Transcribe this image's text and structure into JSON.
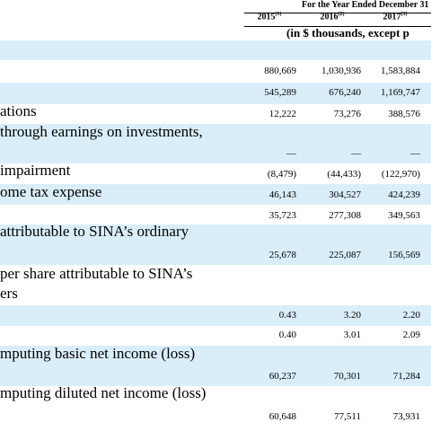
{
  "header": {
    "period": "For the Year Ended December 31",
    "years": [
      {
        "year": "2015",
        "note": "(1)"
      },
      {
        "year": "2016",
        "note": "(2)"
      },
      {
        "year": "2017",
        "note": "(3)"
      }
    ],
    "unit_note": "(in $ thousands, except p"
  },
  "table": {
    "rows": [
      {},
      {
        "values": [
          "880,669",
          "1,030,936",
          "1,583,884"
        ]
      },
      {
        "values": [
          "545,289",
          "676,240",
          "1,169,747"
        ]
      },
      {
        "label": [
          "ations"
        ],
        "values": [
          "12,222",
          "73,276",
          "388,576"
        ]
      },
      {
        "label": [
          "through earnings on investments,"
        ],
        "values": [
          "—",
          "—",
          "—"
        ]
      },
      {
        "label": [
          "impairment"
        ],
        "values": [
          "(8,479)",
          "(44,433)",
          "(122,970)"
        ]
      },
      {
        "label": [
          "ome tax expense"
        ],
        "values": [
          "46,143",
          "304,527",
          "424,239"
        ]
      },
      {
        "values": [
          "35,723",
          "277,308",
          "349,563"
        ]
      },
      {
        "label": [
          "attributable to SINA’s ordinary"
        ],
        "values": [
          "25,678",
          "225,087",
          "156,569"
        ]
      },
      {
        "label": [
          "per share attributable to SINA’s",
          "ers"
        ]
      },
      {
        "values": [
          "0.43",
          "3.20",
          "2.20"
        ]
      },
      {
        "values": [
          "0.40",
          "3.01",
          "2.09"
        ]
      },
      {
        "label": [
          "mputing basic net income (loss)"
        ],
        "values": [
          "60,237",
          "70,301",
          "71,284"
        ]
      },
      {
        "label": [
          "mputing diluted net income (loss)"
        ],
        "values": [
          "60,648",
          "77,511",
          "73,931"
        ]
      }
    ]
  }
}
